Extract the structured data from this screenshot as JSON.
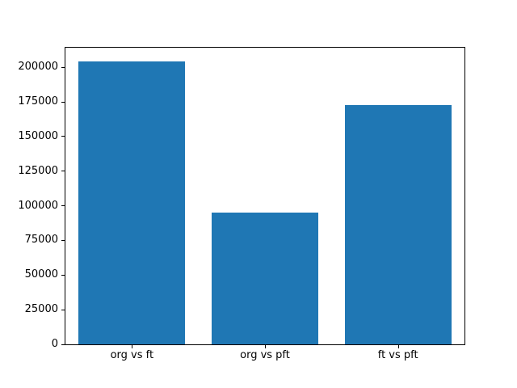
{
  "chart_data": {
    "type": "bar",
    "title": "",
    "xlabel": "",
    "ylabel": "",
    "categories": [
      "org vs ft",
      "org vs pft",
      "ft vs pft"
    ],
    "values": [
      204000,
      95000,
      173000
    ],
    "yticks": [
      0,
      25000,
      50000,
      75000,
      100000,
      125000,
      150000,
      175000,
      200000
    ],
    "ylim": [
      0,
      214200
    ],
    "bar_color": "#1f77b4",
    "bar_width_fraction": 0.8,
    "grid": false,
    "legend_position": "none",
    "background_color": "#ffffff",
    "spine_color": "#000000"
  }
}
